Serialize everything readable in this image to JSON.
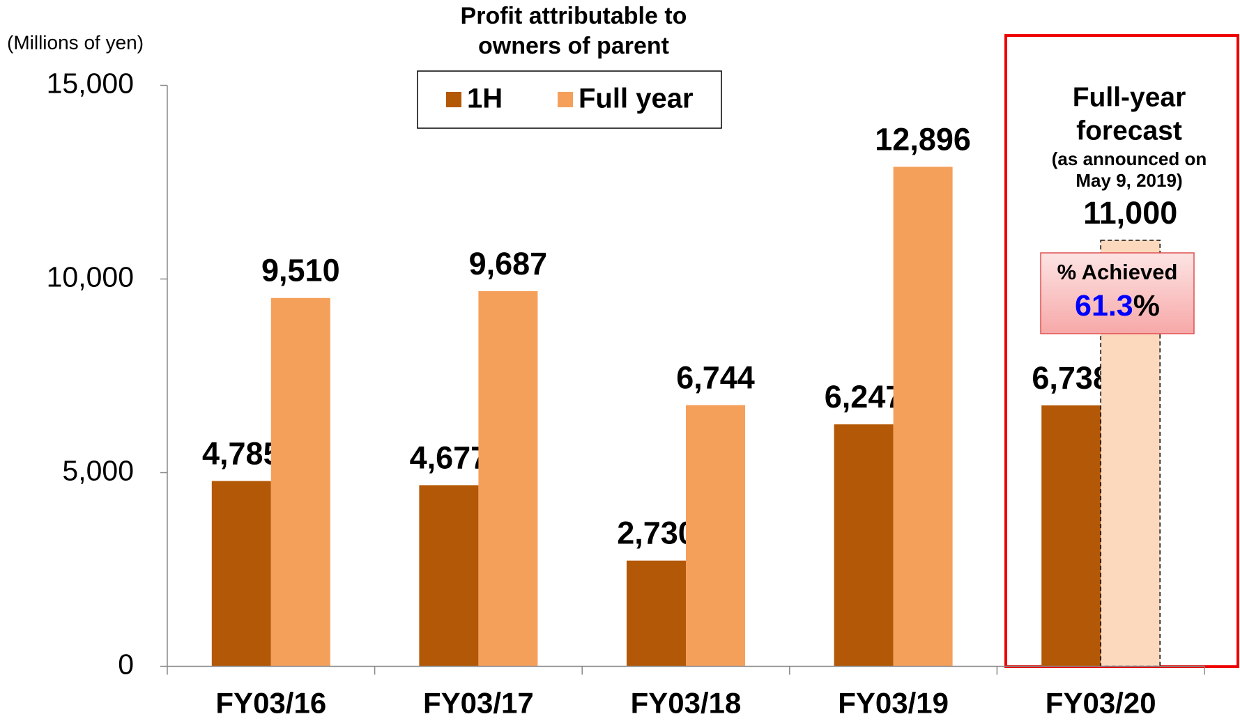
{
  "chart_data": {
    "type": "bar",
    "title_lines": [
      "Profit attributable to",
      "owners of parent"
    ],
    "y_unit": "(Millions of yen)",
    "categories": [
      "FY03/16",
      "FY03/17",
      "FY03/18",
      "FY03/19",
      "FY03/20"
    ],
    "series": [
      {
        "name": "1H",
        "color": "#b35806",
        "values": [
          4785,
          4677,
          2730,
          6247,
          6738
        ],
        "value_labels": [
          "4,785",
          "4,677",
          "2,730",
          "6,247",
          "6,738"
        ],
        "label_colors": [
          "#000000",
          "#000000",
          "#000000",
          "#000000",
          "#0000ff"
        ]
      },
      {
        "name": "Full year",
        "color": "#f5a05a",
        "colors": [
          "#f5a05a",
          "#f5a05a",
          "#f5a05a",
          "#f5a05a",
          "#fcd9bd"
        ],
        "dashed": [
          false,
          false,
          false,
          false,
          true
        ],
        "values": [
          9510,
          9687,
          6744,
          12896,
          11000
        ],
        "value_labels": [
          "9,510",
          "9,687",
          "6,744",
          "12,896",
          "11,000"
        ]
      }
    ],
    "ylim": [
      0,
      15000
    ],
    "yticks": [
      0,
      {
        "value": 5000,
        "label": "5,000"
      },
      {
        "value": 10000,
        "label": "10,000"
      },
      {
        "value": 15000,
        "label": "15,000"
      }
    ],
    "forecast": {
      "title_lines": [
        "Full-year",
        "forecast"
      ],
      "note_lines": [
        "(as announced on",
        "May 9, 2019)"
      ],
      "achieved_label": "% Achieved",
      "achieved": 61.3,
      "achieved_suffix": "%",
      "box_color": "#ee0000"
    }
  }
}
